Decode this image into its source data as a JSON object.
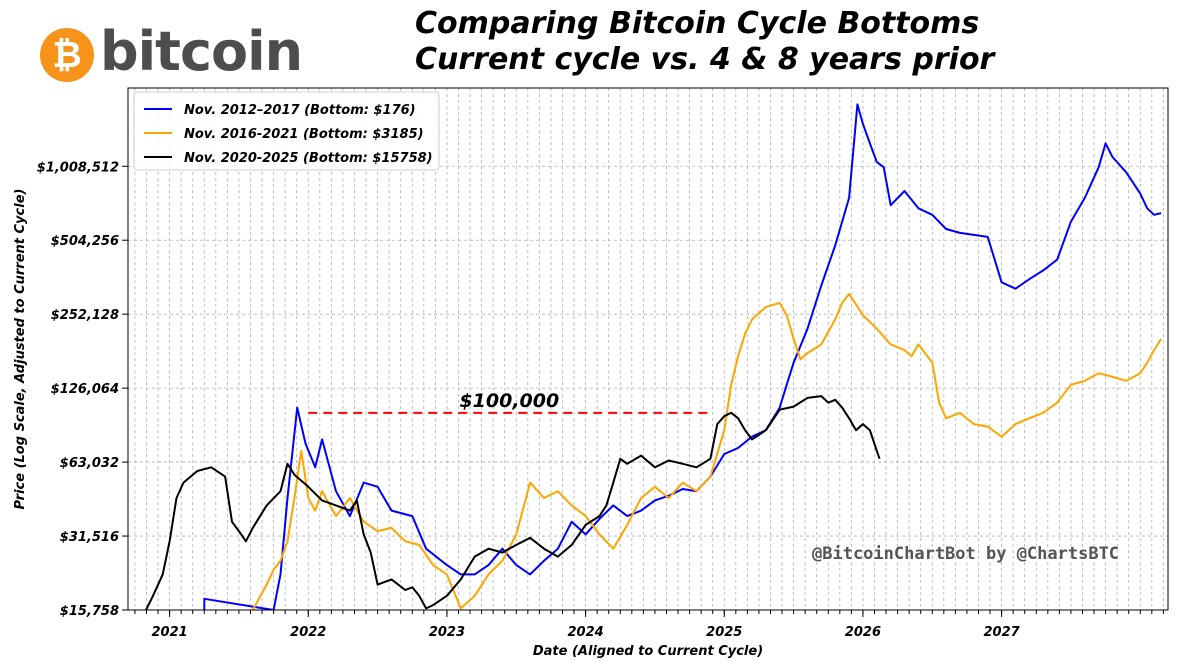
{
  "header": {
    "logo_symbol": "₿",
    "logo_text": "bitcoin",
    "title_line1": "Comparing Bitcoin Cycle Bottoms",
    "title_line2": "Current cycle vs. 4 & 8 years prior"
  },
  "watermark": "@BitcoinChartBot by @ChartsBTC",
  "colors": {
    "series_2012": "#0000ff",
    "series_2016": "#ffa500",
    "series_2020": "#000000",
    "annotation": "#ff0000",
    "grid": "#b0b0b0"
  },
  "chart_data": {
    "type": "line",
    "title": "Comparing Bitcoin Cycle Bottoms\nCurrent cycle vs. 4 & 8 years prior",
    "xlabel": "Date (Aligned to Current Cycle)",
    "ylabel": "Price (Log Scale, Adjusted to Current Cycle)",
    "yscale": "log",
    "ylim": [
      15758,
      2100000
    ],
    "xlim": [
      2020.7,
      2028.2
    ],
    "x_ticks": [
      2021,
      2022,
      2023,
      2024,
      2025,
      2026,
      2027
    ],
    "x_tick_labels": [
      "2021",
      "2022",
      "2023",
      "2024",
      "2025",
      "2026",
      "2027"
    ],
    "y_ticks": [
      15758,
      31516,
      63032,
      126064,
      252128,
      504256,
      1008512
    ],
    "y_tick_labels": [
      "$15,758",
      "$31,516",
      "$63,032",
      "$126,064",
      "$252,128",
      "$504,256",
      "$1,008,512"
    ],
    "grid": true,
    "legend_position": "top-left",
    "series": [
      {
        "name": "Nov. 2012–2017 (Bottom: $176)",
        "color": "#0000ff",
        "points": [
          [
            2021.25,
            15758
          ],
          [
            2021.25,
            17500
          ],
          [
            2021.75,
            15758
          ],
          [
            2021.8,
            22000
          ],
          [
            2021.85,
            45000
          ],
          [
            2021.92,
            105000
          ],
          [
            2021.98,
            75000
          ],
          [
            2022.05,
            60000
          ],
          [
            2022.1,
            78000
          ],
          [
            2022.2,
            48000
          ],
          [
            2022.3,
            38000
          ],
          [
            2022.4,
            52000
          ],
          [
            2022.5,
            50000
          ],
          [
            2022.6,
            40000
          ],
          [
            2022.75,
            38000
          ],
          [
            2022.85,
            28000
          ],
          [
            2023.0,
            24000
          ],
          [
            2023.1,
            22000
          ],
          [
            2023.2,
            22000
          ],
          [
            2023.3,
            24000
          ],
          [
            2023.4,
            28000
          ],
          [
            2023.5,
            24000
          ],
          [
            2023.6,
            22000
          ],
          [
            2023.7,
            25000
          ],
          [
            2023.8,
            28000
          ],
          [
            2023.9,
            36000
          ],
          [
            2024.0,
            32000
          ],
          [
            2024.1,
            37000
          ],
          [
            2024.2,
            42000
          ],
          [
            2024.3,
            38000
          ],
          [
            2024.4,
            40000
          ],
          [
            2024.5,
            44000
          ],
          [
            2024.6,
            46000
          ],
          [
            2024.7,
            49000
          ],
          [
            2024.8,
            48000
          ],
          [
            2024.9,
            55000
          ],
          [
            2025.0,
            68000
          ],
          [
            2025.1,
            72000
          ],
          [
            2025.2,
            80000
          ],
          [
            2025.3,
            85000
          ],
          [
            2025.4,
            105000
          ],
          [
            2025.45,
            130000
          ],
          [
            2025.5,
            160000
          ],
          [
            2025.6,
            220000
          ],
          [
            2025.7,
            330000
          ],
          [
            2025.8,
            480000
          ],
          [
            2025.9,
            750000
          ],
          [
            2025.96,
            1800000
          ],
          [
            2026.0,
            1500000
          ],
          [
            2026.05,
            1250000
          ],
          [
            2026.1,
            1050000
          ],
          [
            2026.15,
            1000000
          ],
          [
            2026.2,
            700000
          ],
          [
            2026.3,
            800000
          ],
          [
            2026.4,
            680000
          ],
          [
            2026.5,
            640000
          ],
          [
            2026.6,
            560000
          ],
          [
            2026.7,
            540000
          ],
          [
            2026.8,
            530000
          ],
          [
            2026.9,
            520000
          ],
          [
            2026.95,
            420000
          ],
          [
            2027.0,
            340000
          ],
          [
            2027.1,
            320000
          ],
          [
            2027.2,
            350000
          ],
          [
            2027.3,
            380000
          ],
          [
            2027.4,
            420000
          ],
          [
            2027.5,
            600000
          ],
          [
            2027.6,
            750000
          ],
          [
            2027.7,
            1000000
          ],
          [
            2027.75,
            1250000
          ],
          [
            2027.8,
            1100000
          ],
          [
            2027.9,
            950000
          ],
          [
            2028.0,
            780000
          ],
          [
            2028.05,
            680000
          ],
          [
            2028.1,
            640000
          ],
          [
            2028.15,
            650000
          ]
        ]
      },
      {
        "name": "Nov. 2016-2021 (Bottom: $3185)",
        "color": "#ffa500",
        "points": [
          [
            2021.6,
            15758
          ],
          [
            2021.7,
            20000
          ],
          [
            2021.75,
            23000
          ],
          [
            2021.8,
            25000
          ],
          [
            2021.85,
            30000
          ],
          [
            2021.9,
            45000
          ],
          [
            2021.95,
            70000
          ],
          [
            2022.0,
            45000
          ],
          [
            2022.05,
            40000
          ],
          [
            2022.1,
            48000
          ],
          [
            2022.2,
            38000
          ],
          [
            2022.3,
            45000
          ],
          [
            2022.4,
            36000
          ],
          [
            2022.5,
            33000
          ],
          [
            2022.6,
            34000
          ],
          [
            2022.7,
            30000
          ],
          [
            2022.8,
            29000
          ],
          [
            2022.9,
            24000
          ],
          [
            2023.0,
            22000
          ],
          [
            2023.1,
            16000
          ],
          [
            2023.2,
            18000
          ],
          [
            2023.3,
            22000
          ],
          [
            2023.4,
            25000
          ],
          [
            2023.5,
            32000
          ],
          [
            2023.6,
            52000
          ],
          [
            2023.7,
            45000
          ],
          [
            2023.8,
            48000
          ],
          [
            2023.9,
            42000
          ],
          [
            2024.0,
            38000
          ],
          [
            2024.1,
            32000
          ],
          [
            2024.2,
            28000
          ],
          [
            2024.3,
            35000
          ],
          [
            2024.4,
            45000
          ],
          [
            2024.5,
            50000
          ],
          [
            2024.6,
            45000
          ],
          [
            2024.7,
            52000
          ],
          [
            2024.8,
            48000
          ],
          [
            2024.9,
            55000
          ],
          [
            2025.0,
            85000
          ],
          [
            2025.05,
            130000
          ],
          [
            2025.1,
            170000
          ],
          [
            2025.15,
            210000
          ],
          [
            2025.2,
            240000
          ],
          [
            2025.3,
            270000
          ],
          [
            2025.4,
            280000
          ],
          [
            2025.45,
            250000
          ],
          [
            2025.5,
            200000
          ],
          [
            2025.55,
            165000
          ],
          [
            2025.6,
            175000
          ],
          [
            2025.7,
            190000
          ],
          [
            2025.8,
            240000
          ],
          [
            2025.85,
            280000
          ],
          [
            2025.9,
            305000
          ],
          [
            2026.0,
            250000
          ],
          [
            2026.1,
            220000
          ],
          [
            2026.2,
            190000
          ],
          [
            2026.3,
            180000
          ],
          [
            2026.35,
            170000
          ],
          [
            2026.4,
            190000
          ],
          [
            2026.5,
            160000
          ],
          [
            2026.55,
            110000
          ],
          [
            2026.6,
            95000
          ],
          [
            2026.7,
            100000
          ],
          [
            2026.8,
            90000
          ],
          [
            2026.9,
            88000
          ],
          [
            2027.0,
            80000
          ],
          [
            2027.1,
            90000
          ],
          [
            2027.2,
            95000
          ],
          [
            2027.3,
            100000
          ],
          [
            2027.4,
            110000
          ],
          [
            2027.5,
            130000
          ],
          [
            2027.6,
            135000
          ],
          [
            2027.7,
            145000
          ],
          [
            2027.8,
            140000
          ],
          [
            2027.9,
            135000
          ],
          [
            2028.0,
            145000
          ],
          [
            2028.05,
            160000
          ],
          [
            2028.1,
            180000
          ],
          [
            2028.15,
            200000
          ]
        ]
      },
      {
        "name": "Nov. 2020-2025 (Bottom: $15758)",
        "color": "#000000",
        "points": [
          [
            2020.83,
            15758
          ],
          [
            2020.88,
            18000
          ],
          [
            2020.95,
            22000
          ],
          [
            2021.0,
            30000
          ],
          [
            2021.05,
            45000
          ],
          [
            2021.1,
            52000
          ],
          [
            2021.2,
            58000
          ],
          [
            2021.3,
            60000
          ],
          [
            2021.4,
            55000
          ],
          [
            2021.45,
            36000
          ],
          [
            2021.5,
            33000
          ],
          [
            2021.55,
            30000
          ],
          [
            2021.6,
            34000
          ],
          [
            2021.7,
            42000
          ],
          [
            2021.8,
            48000
          ],
          [
            2021.85,
            62000
          ],
          [
            2021.9,
            56000
          ],
          [
            2022.0,
            50000
          ],
          [
            2022.1,
            44000
          ],
          [
            2022.2,
            42000
          ],
          [
            2022.3,
            40000
          ],
          [
            2022.35,
            44000
          ],
          [
            2022.4,
            32000
          ],
          [
            2022.45,
            27000
          ],
          [
            2022.5,
            20000
          ],
          [
            2022.6,
            21000
          ],
          [
            2022.7,
            19000
          ],
          [
            2022.75,
            19500
          ],
          [
            2022.8,
            18000
          ],
          [
            2022.85,
            16000
          ],
          [
            2022.9,
            16500
          ],
          [
            2023.0,
            18000
          ],
          [
            2023.1,
            21000
          ],
          [
            2023.2,
            26000
          ],
          [
            2023.3,
            28000
          ],
          [
            2023.4,
            27000
          ],
          [
            2023.5,
            29000
          ],
          [
            2023.6,
            31000
          ],
          [
            2023.7,
            28000
          ],
          [
            2023.8,
            26000
          ],
          [
            2023.9,
            29000
          ],
          [
            2024.0,
            35000
          ],
          [
            2024.1,
            38000
          ],
          [
            2024.15,
            42000
          ],
          [
            2024.2,
            52000
          ],
          [
            2024.25,
            65000
          ],
          [
            2024.3,
            62000
          ],
          [
            2024.4,
            67000
          ],
          [
            2024.5,
            60000
          ],
          [
            2024.6,
            64000
          ],
          [
            2024.7,
            62000
          ],
          [
            2024.8,
            60000
          ],
          [
            2024.9,
            65000
          ],
          [
            2024.95,
            90000
          ],
          [
            2025.0,
            97000
          ],
          [
            2025.05,
            100000
          ],
          [
            2025.1,
            95000
          ],
          [
            2025.15,
            85000
          ],
          [
            2025.2,
            78000
          ],
          [
            2025.3,
            85000
          ],
          [
            2025.4,
            103000
          ],
          [
            2025.5,
            106000
          ],
          [
            2025.6,
            115000
          ],
          [
            2025.7,
            117000
          ],
          [
            2025.75,
            110000
          ],
          [
            2025.8,
            113000
          ],
          [
            2025.85,
            105000
          ],
          [
            2025.9,
            95000
          ],
          [
            2025.95,
            85000
          ],
          [
            2026.0,
            90000
          ],
          [
            2026.05,
            85000
          ],
          [
            2026.1,
            70000
          ],
          [
            2026.12,
            65000
          ]
        ]
      }
    ],
    "annotations": [
      {
        "text": "$100,000",
        "x_start": 2022.0,
        "x_end": 2024.9,
        "y": 100000,
        "color": "#ff0000",
        "style": "dashed"
      }
    ]
  }
}
